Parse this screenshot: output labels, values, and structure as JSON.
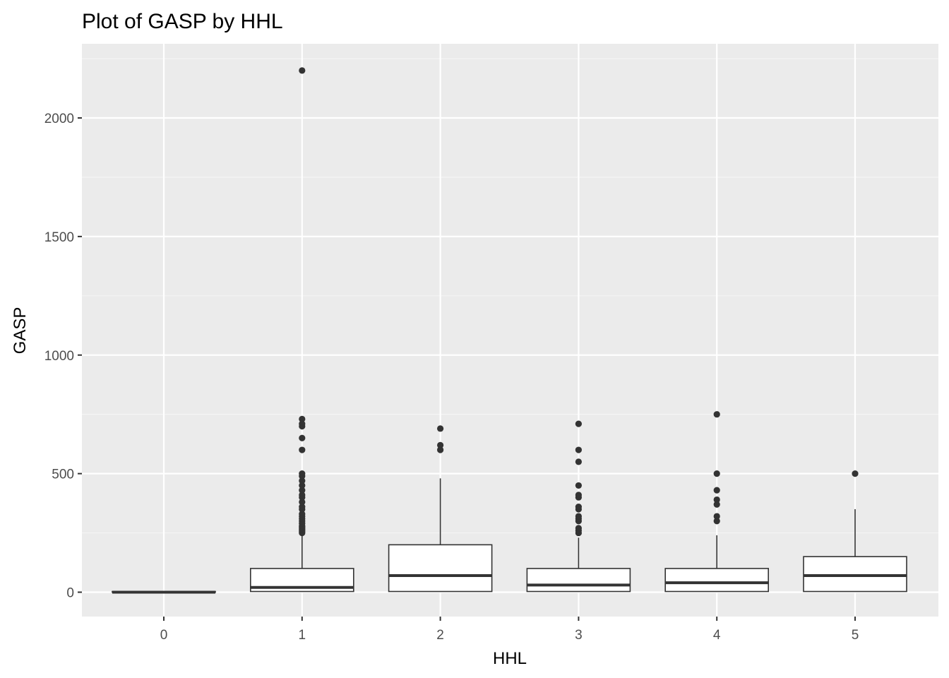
{
  "chart_data": {
    "type": "boxplot",
    "title": "Plot of GASP by HHL",
    "xlabel": "HHL",
    "ylabel": "GASP",
    "categories": [
      "0",
      "1",
      "2",
      "3",
      "4",
      "5"
    ],
    "y_ticks": [
      0,
      500,
      1000,
      1500,
      2000
    ],
    "y_tick_labels": [
      "0",
      "500",
      "1000",
      "1500",
      "2000"
    ],
    "ylim": [
      -100,
      2250
    ],
    "grid": true,
    "legend": "none",
    "colors": {
      "panel_background": "#ebebeb",
      "grid_major": "#ffffff",
      "grid_minor": "#f5f5f5",
      "box_fill": "#ffffff",
      "box_line": "#333333",
      "outlier": "#333333"
    },
    "boxes": [
      {
        "category": "0",
        "q1": 0,
        "median": 0,
        "q3": 3,
        "whisker_low": 0,
        "whisker_high": 3,
        "outliers": []
      },
      {
        "category": "1",
        "q1": 3,
        "median": 20,
        "q3": 100,
        "whisker_low": 3,
        "whisker_high": 240,
        "outliers": [
          250,
          255,
          260,
          265,
          270,
          275,
          280,
          290,
          300,
          310,
          320,
          330,
          350,
          360,
          380,
          400,
          410,
          430,
          450,
          470,
          490,
          500,
          600,
          650,
          700,
          710,
          730,
          2200
        ]
      },
      {
        "category": "2",
        "q1": 3,
        "median": 70,
        "q3": 200,
        "whisker_low": 3,
        "whisker_high": 480,
        "outliers": [
          600,
          620,
          690
        ]
      },
      {
        "category": "3",
        "q1": 3,
        "median": 30,
        "q3": 100,
        "whisker_low": 3,
        "whisker_high": 230,
        "outliers": [
          250,
          260,
          270,
          300,
          310,
          320,
          350,
          360,
          400,
          410,
          450,
          550,
          600,
          710
        ]
      },
      {
        "category": "4",
        "q1": 3,
        "median": 40,
        "q3": 100,
        "whisker_low": 3,
        "whisker_high": 240,
        "outliers": [
          300,
          320,
          370,
          390,
          430,
          500,
          750
        ]
      },
      {
        "category": "5",
        "q1": 3,
        "median": 70,
        "q3": 150,
        "whisker_low": 3,
        "whisker_high": 350,
        "outliers": [
          500
        ]
      }
    ]
  }
}
